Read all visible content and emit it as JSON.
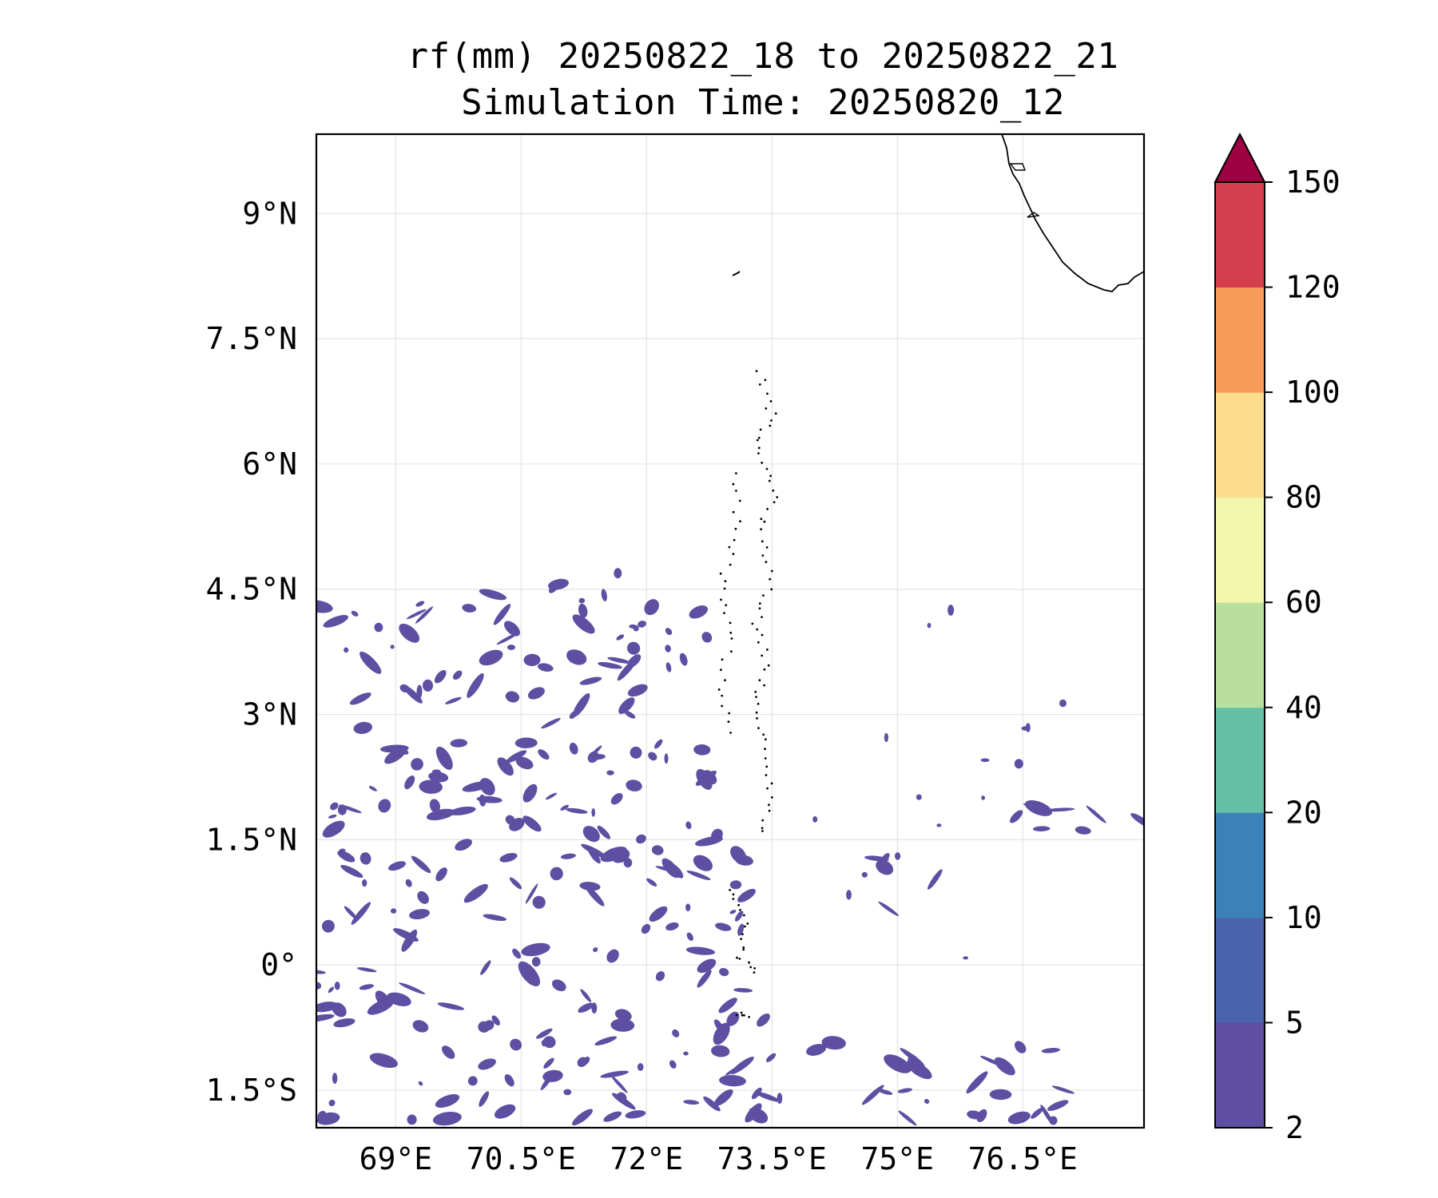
{
  "title": {
    "line1": "rf(mm) 20250822_18 to 20250822_21",
    "line2": "Simulation Time: 20250820_12"
  },
  "map": {
    "lat_labels": [
      "9°N",
      "7.5°N",
      "6°N",
      "4.5°N",
      "3°N",
      "1.5°N",
      "0°",
      "1.5°S"
    ],
    "lon_labels": [
      "69°E",
      "70.5°E",
      "72°E",
      "73.5°E",
      "75°E",
      "76.5°E"
    ],
    "extent": {
      "lon": [
        68.05,
        77.95
      ],
      "lat": [
        -1.95,
        9.95
      ]
    },
    "gridlines": true,
    "coastline": "black"
  },
  "colorbar": {
    "ticks": [
      "2",
      "5",
      "10",
      "20",
      "40",
      "60",
      "80",
      "100",
      "120",
      "150"
    ],
    "colors": [
      "#5e4fa2",
      "#4b62ad",
      "#3a82b9",
      "#64bfa5",
      "#b8e09c",
      "#f2f7ad",
      "#fbdd8d",
      "#f89c5a",
      "#d53e4f"
    ],
    "extend_color": "#9e0142",
    "extend": "max"
  },
  "chart_data": {
    "type": "heatmap",
    "title": "rf(mm) 20250822_18 to 20250822_21\nSimulation Time: 20250820_12",
    "levels": [
      2,
      5,
      10,
      20,
      40,
      60,
      80,
      100,
      120,
      150
    ],
    "field_color": "#5e4fa2",
    "rain_regions": [
      {
        "lon": [
          68.05,
          72.8
        ],
        "lat": [
          1.6,
          4.6
        ],
        "class": "2-5"
      },
      {
        "lon": [
          68.05,
          73.5
        ],
        "lat": [
          -1.95,
          1.6
        ],
        "class": "2-5"
      },
      {
        "lon": [
          74.7,
          75.6
        ],
        "lat": [
          0.6,
          1.3
        ],
        "class": "2-5"
      },
      {
        "lon": [
          76.4,
          77.95
        ],
        "lat": [
          1.2,
          1.9
        ],
        "class": "2-5"
      },
      {
        "lon": [
          73.8,
          77.0
        ],
        "lat": [
          -1.95,
          -0.9
        ],
        "class": "2-5"
      }
    ]
  }
}
